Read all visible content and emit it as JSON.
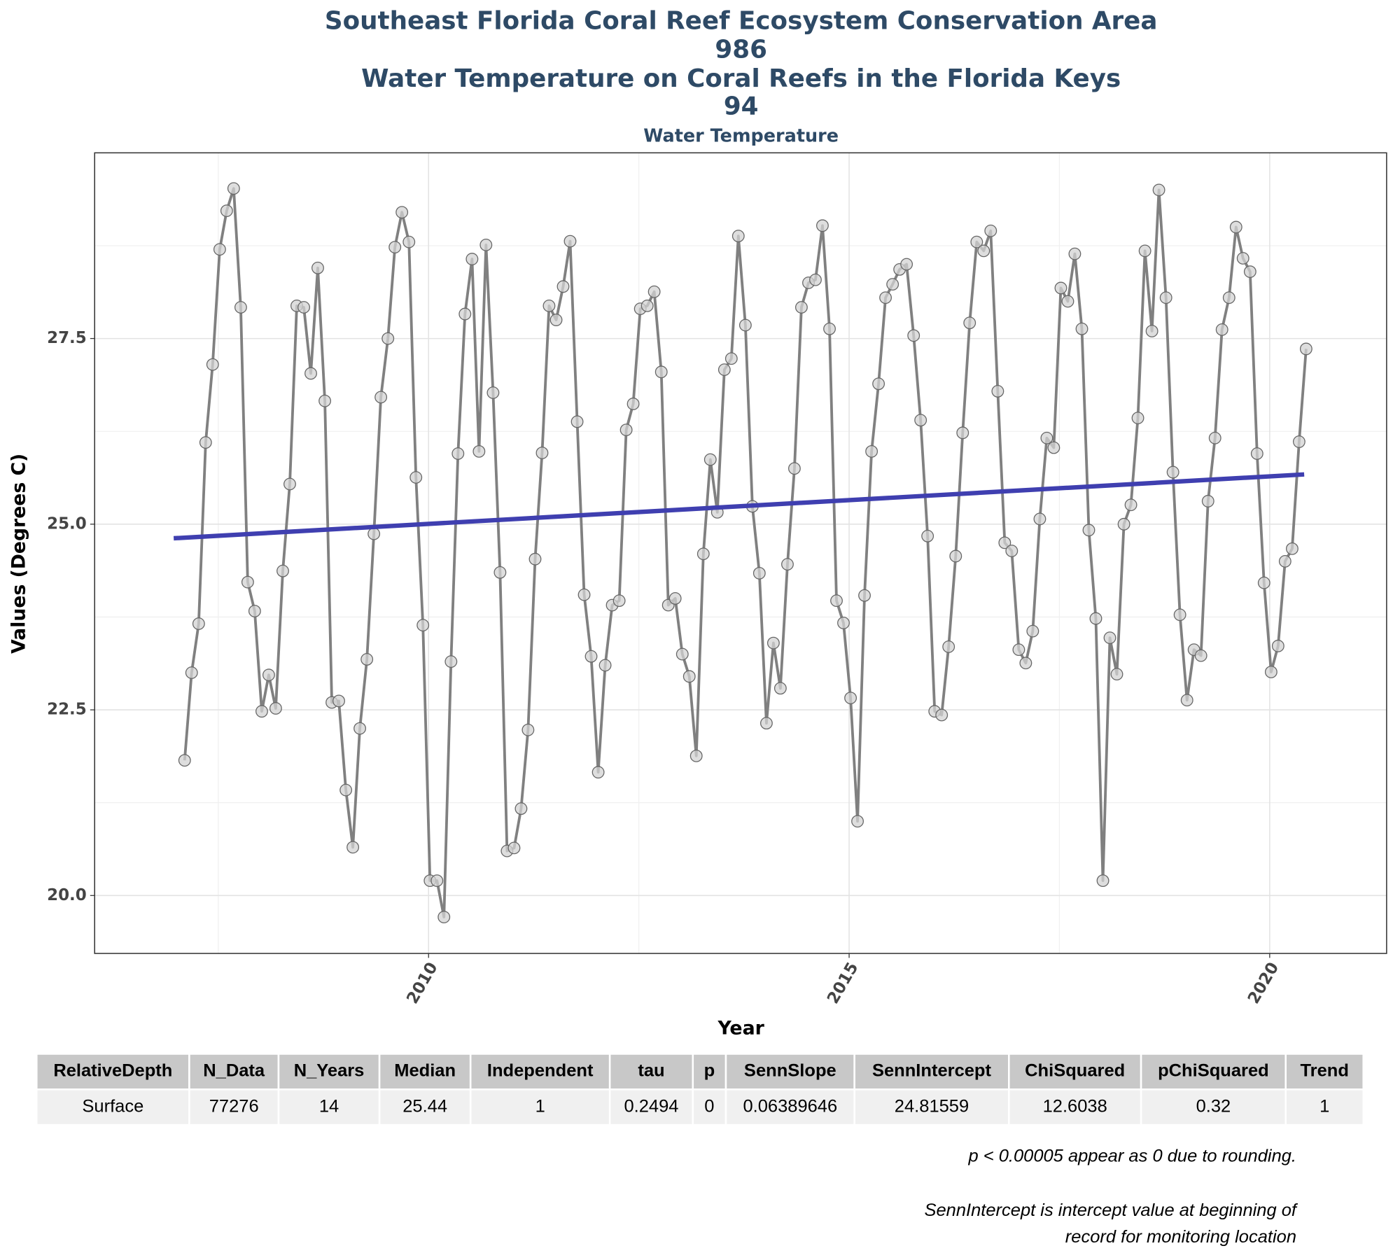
{
  "chart_data": {
    "type": "line",
    "title": [
      "Southeast Florida Coral Reef Ecosystem Conservation Area",
      "986",
      "Water Temperature on Coral Reefs in the Florida Keys",
      "94"
    ],
    "subtitle": "Water Temperature",
    "xlabel": "Year",
    "ylabel": "Values (Degrees C)",
    "xlim": [
      2006.03,
      2021.39
    ],
    "ylim": [
      19.22,
      30.0
    ],
    "xticks": [
      2010,
      2015,
      2020
    ],
    "yticks": [
      {
        "value": 20,
        "label": "20.0"
      },
      22.5,
      {
        "value": 25,
        "label": "25.0"
      },
      27.5
    ],
    "x_minor_grid": [
      2007.5,
      2012.5,
      2017.5
    ],
    "y_minor_grid": [
      21.25,
      23.75,
      26.25,
      28.75
    ],
    "grid": true,
    "series": [
      {
        "color": "#808080",
        "marker_color": "#d3d3d3",
        "x": [
          2007.1,
          2007.183,
          2007.267,
          2007.35,
          2007.433,
          2007.517,
          2007.6,
          2007.683,
          2007.767,
          2007.85,
          2007.933,
          2008.017,
          2008.1,
          2008.183,
          2008.267,
          2008.35,
          2008.433,
          2008.517,
          2008.6,
          2008.683,
          2008.767,
          2008.85,
          2008.933,
          2009.017,
          2009.1,
          2009.183,
          2009.267,
          2009.35,
          2009.433,
          2009.517,
          2009.6,
          2009.683,
          2009.767,
          2009.85,
          2009.933,
          2010.017,
          2010.1,
          2010.183,
          2010.267,
          2010.35,
          2010.433,
          2010.517,
          2010.6,
          2010.683,
          2010.767,
          2010.85,
          2010.933,
          2011.017,
          2011.1,
          2011.183,
          2011.267,
          2011.35,
          2011.433,
          2011.517,
          2011.6,
          2011.683,
          2011.767,
          2011.85,
          2011.933,
          2012.017,
          2012.1,
          2012.183,
          2012.267,
          2012.35,
          2012.433,
          2012.517,
          2012.6,
          2012.683,
          2012.767,
          2012.85,
          2012.933,
          2013.017,
          2013.1,
          2013.183,
          2013.267,
          2013.35,
          2013.433,
          2013.517,
          2013.6,
          2013.683,
          2013.767,
          2013.85,
          2013.933,
          2014.017,
          2014.1,
          2014.183,
          2014.267,
          2014.35,
          2014.433,
          2014.517,
          2014.6,
          2014.683,
          2014.767,
          2014.85,
          2014.933,
          2015.017,
          2015.1,
          2015.183,
          2015.267,
          2015.35,
          2015.433,
          2015.517,
          2015.6,
          2015.683,
          2015.767,
          2015.85,
          2015.933,
          2016.017,
          2016.1,
          2016.183,
          2016.267,
          2016.35,
          2016.433,
          2016.517,
          2016.6,
          2016.683,
          2016.767,
          2016.85,
          2016.933,
          2017.017,
          2017.1,
          2017.183,
          2017.267,
          2017.35,
          2017.433,
          2017.517,
          2017.6,
          2017.683,
          2017.767,
          2017.85,
          2017.933,
          2018.017,
          2018.1,
          2018.183,
          2018.267,
          2018.35,
          2018.433,
          2018.517,
          2018.6,
          2018.683,
          2018.767,
          2018.85,
          2018.933,
          2019.017,
          2019.1,
          2019.183,
          2019.267,
          2019.35,
          2019.433,
          2019.517,
          2019.6,
          2019.683,
          2019.767,
          2019.85,
          2019.933,
          2020.017,
          2020.1,
          2020.183,
          2020.267,
          2020.35,
          2020.433
        ],
        "values": [
          21.82,
          23.0,
          23.66,
          26.1,
          27.15,
          28.7,
          29.22,
          29.52,
          27.92,
          24.22,
          23.83,
          22.48,
          22.97,
          22.52,
          24.37,
          25.54,
          27.94,
          27.92,
          27.03,
          28.45,
          26.66,
          22.6,
          22.62,
          21.42,
          20.65,
          22.25,
          23.18,
          24.87,
          26.71,
          27.5,
          28.73,
          29.2,
          28.8,
          25.63,
          23.64,
          20.2,
          20.2,
          19.71,
          23.15,
          25.95,
          27.83,
          28.57,
          25.98,
          28.76,
          26.77,
          24.35,
          20.6,
          20.64,
          21.17,
          22.23,
          24.53,
          25.96,
          27.94,
          27.75,
          28.2,
          28.81,
          26.38,
          24.05,
          23.22,
          21.66,
          23.1,
          23.91,
          23.97,
          26.27,
          26.62,
          27.9,
          27.94,
          28.13,
          27.05,
          23.91,
          24.0,
          23.25,
          22.95,
          21.88,
          24.6,
          25.87,
          25.16,
          27.08,
          27.23,
          28.88,
          27.68,
          25.24,
          24.34,
          22.32,
          23.4,
          22.79,
          24.46,
          25.75,
          27.92,
          28.25,
          28.29,
          29.02,
          27.63,
          23.97,
          23.67,
          22.66,
          21.0,
          24.04,
          25.98,
          26.89,
          28.05,
          28.23,
          28.43,
          28.5,
          27.54,
          26.4,
          24.84,
          22.48,
          22.43,
          23.35,
          24.57,
          26.23,
          27.71,
          28.8,
          28.68,
          28.95,
          26.79,
          24.75,
          24.64,
          23.31,
          23.13,
          23.56,
          25.07,
          26.16,
          26.03,
          28.18,
          28.0,
          28.64,
          27.63,
          24.92,
          23.73,
          20.2,
          23.47,
          22.98,
          25.0,
          25.26,
          26.43,
          28.68,
          27.6,
          29.5,
          28.05,
          25.7,
          23.78,
          22.63,
          23.31,
          23.23,
          25.31,
          26.16,
          27.62,
          28.05,
          29.0,
          28.58,
          28.4,
          25.95,
          24.21,
          23.01,
          23.36,
          24.5,
          24.67,
          26.11,
          27.36
        ]
      }
    ],
    "trend": {
      "color": "#3f3fb0",
      "x": [
        2006.97,
        2020.41
      ],
      "values": [
        24.81,
        25.67
      ]
    }
  },
  "table": {
    "headers": [
      "RelativeDepth",
      "N_Data",
      "N_Years",
      "Median",
      "Independent",
      "tau",
      "p",
      "SennSlope",
      "SennIntercept",
      "ChiSquared",
      "pChiSquared",
      "Trend"
    ],
    "rows": [
      [
        "Surface",
        "77276",
        "14",
        "25.44",
        "1",
        "0.2494",
        "0",
        "0.06389646",
        "24.81559",
        "12.6038",
        "0.32",
        "1"
      ]
    ]
  },
  "notes": [
    "p < 0.00005 appear as 0 due to rounding.",
    "SennIntercept is intercept value at beginning of",
    "record for monitoring location"
  ]
}
